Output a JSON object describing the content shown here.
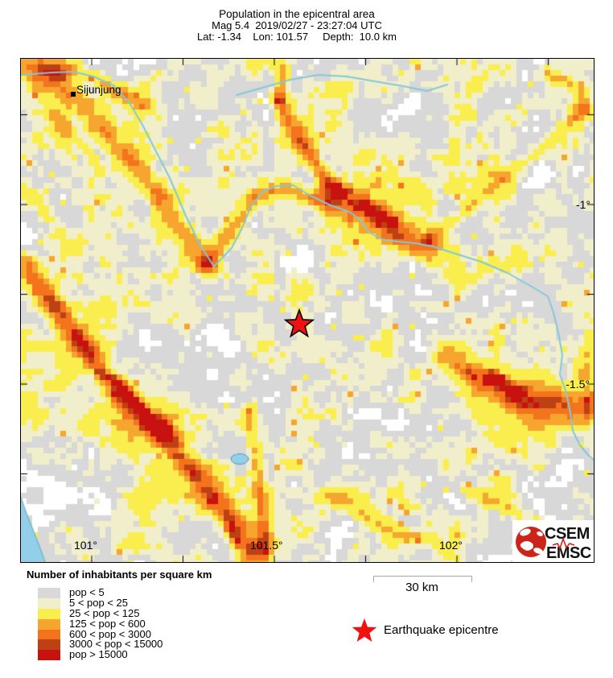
{
  "header": {
    "title": "Population in the epicentral area",
    "line2": "Mag 5.4  2019/02/27 - 23:27:04 UTC",
    "line3": "Lat: -1.34    Lon: 101.57     Depth:  10.0 km"
  },
  "map": {
    "city_label": "Sijunjung",
    "lon_labels": [
      "101°",
      "101.5°",
      "102°"
    ],
    "lat_labels": [
      "-1°",
      "-1.5°"
    ]
  },
  "legend": {
    "title": "Number of inhabitants per square km",
    "classes": [
      {
        "label": "pop < 5",
        "color": "#d8d8d8"
      },
      {
        "label": "5 < pop < 25",
        "color": "#f1efcb"
      },
      {
        "label": "25 < pop < 125",
        "color": "#f9ee4e"
      },
      {
        "label": "125 < pop < 600",
        "color": "#f6a62f"
      },
      {
        "label": "600 < pop < 3000",
        "color": "#f4731d"
      },
      {
        "label": "3000 < pop < 15000",
        "color": "#bd4114"
      },
      {
        "label": "pop > 15000",
        "color": "#c81210"
      }
    ]
  },
  "scale_bar": {
    "label": "30 km"
  },
  "epicentre_legend": {
    "label": "Earthquake epicentre"
  },
  "logo": {
    "line1": "CSEM",
    "line2": "EMSC"
  },
  "colors": {
    "no_data": "#ffffff",
    "sea": "#93cfe8",
    "coast_line": "#79b6c9",
    "river": "#85c8d8",
    "lake_outline": "#5599bb",
    "star": "#f21111",
    "logo_red": "#cc2419"
  }
}
